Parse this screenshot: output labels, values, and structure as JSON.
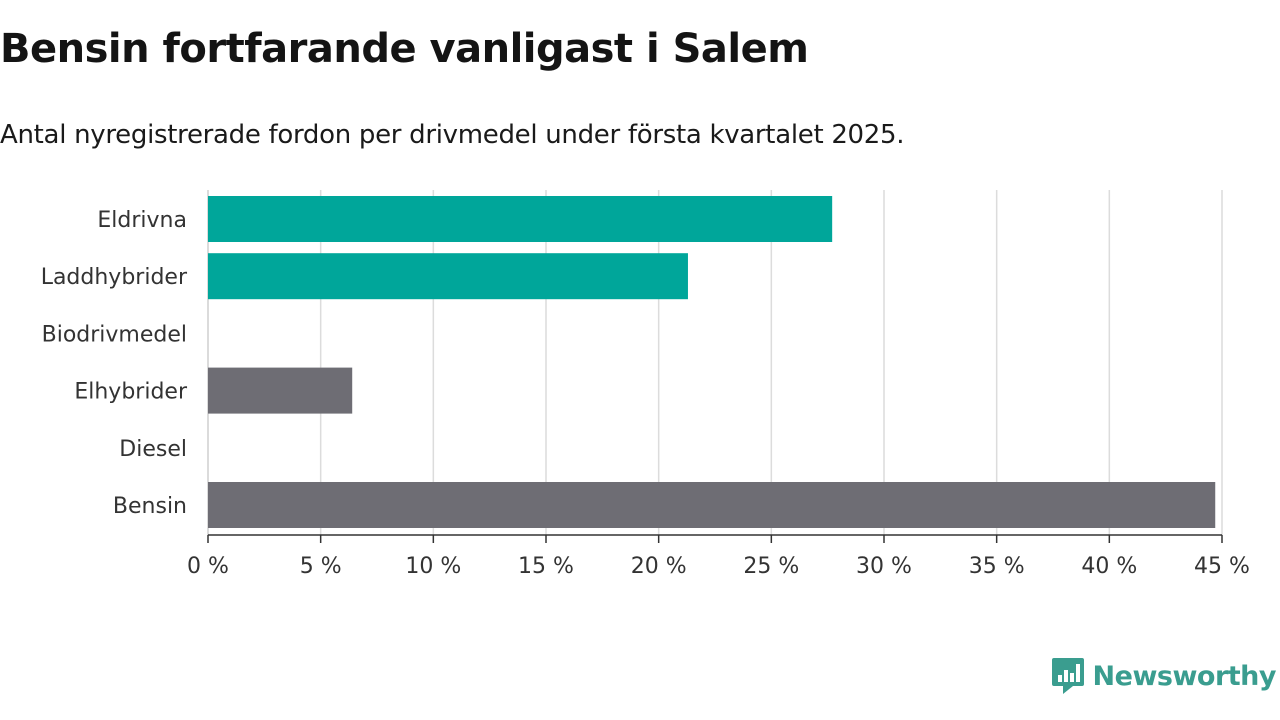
{
  "header": {
    "title": "Bensin fortfarande vanligast i Salem",
    "subtitle": "Antal nyregistrerade fordon per drivmedel under första kvartalet 2025."
  },
  "brand": {
    "name": "Newsworthy",
    "logo_icon": "bar-chart-icon",
    "color": "#3a9d8f"
  },
  "chart_data": {
    "type": "bar",
    "orientation": "horizontal",
    "categories": [
      "Eldrivna",
      "Laddhybrider",
      "Biodrivmedel",
      "Elhybrider",
      "Diesel",
      "Bensin"
    ],
    "values": [
      27.7,
      21.3,
      0,
      6.4,
      0,
      44.7
    ],
    "colors": [
      "#00a69a",
      "#00a69a",
      "#00a69a",
      "#6e6d74",
      "#6e6d74",
      "#6e6d74"
    ],
    "xlim": [
      0,
      45
    ],
    "xticks": [
      0,
      5,
      10,
      15,
      20,
      25,
      30,
      35,
      40,
      45
    ],
    "xtick_labels": [
      "0 %",
      "5 %",
      "10 %",
      "15 %",
      "20 %",
      "25 %",
      "30 %",
      "35 %",
      "40 %",
      "45 %"
    ],
    "grid": true,
    "legend": "none"
  }
}
